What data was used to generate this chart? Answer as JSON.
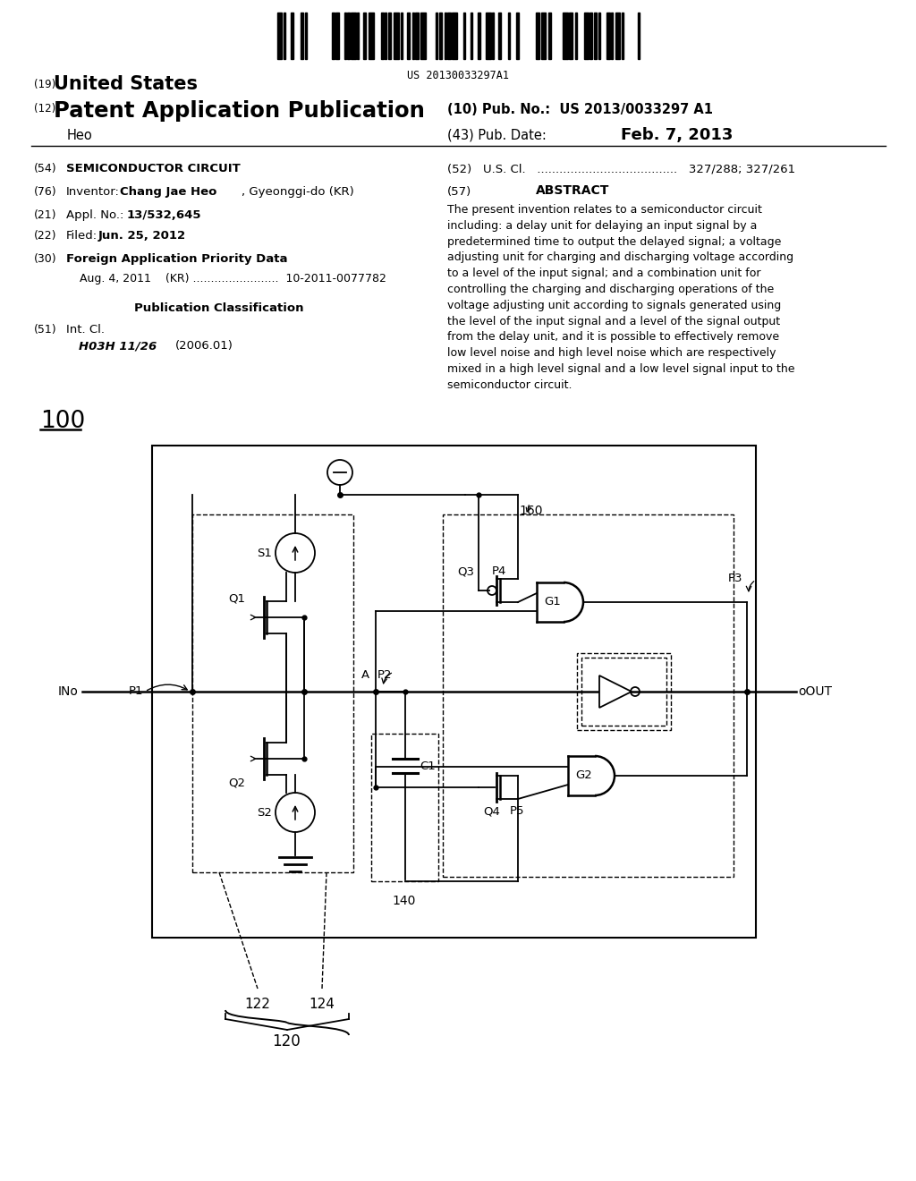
{
  "background_color": "#ffffff",
  "barcode_text": "US 20130033297A1",
  "pub_no": "US 2013/0033297 A1",
  "pub_date": "Feb. 7, 2013",
  "author": "Heo",
  "abstract": "The present invention relates to a semiconductor circuit including: a delay unit for delaying an input signal by a predetermined time to output the delayed signal; a voltage adjusting unit for charging and discharging voltage according to a level of the input signal; and a combination unit for controlling the charging and discharging operations of the voltage adjusting unit according to signals generated using the level of the input signal and a level of the signal output from the delay unit, and it is possible to effectively remove low level noise and high level noise which are respectively mixed in a high level signal and a low level signal input to the semiconductor circuit.",
  "lw": 1.3,
  "lw_thick": 1.8
}
